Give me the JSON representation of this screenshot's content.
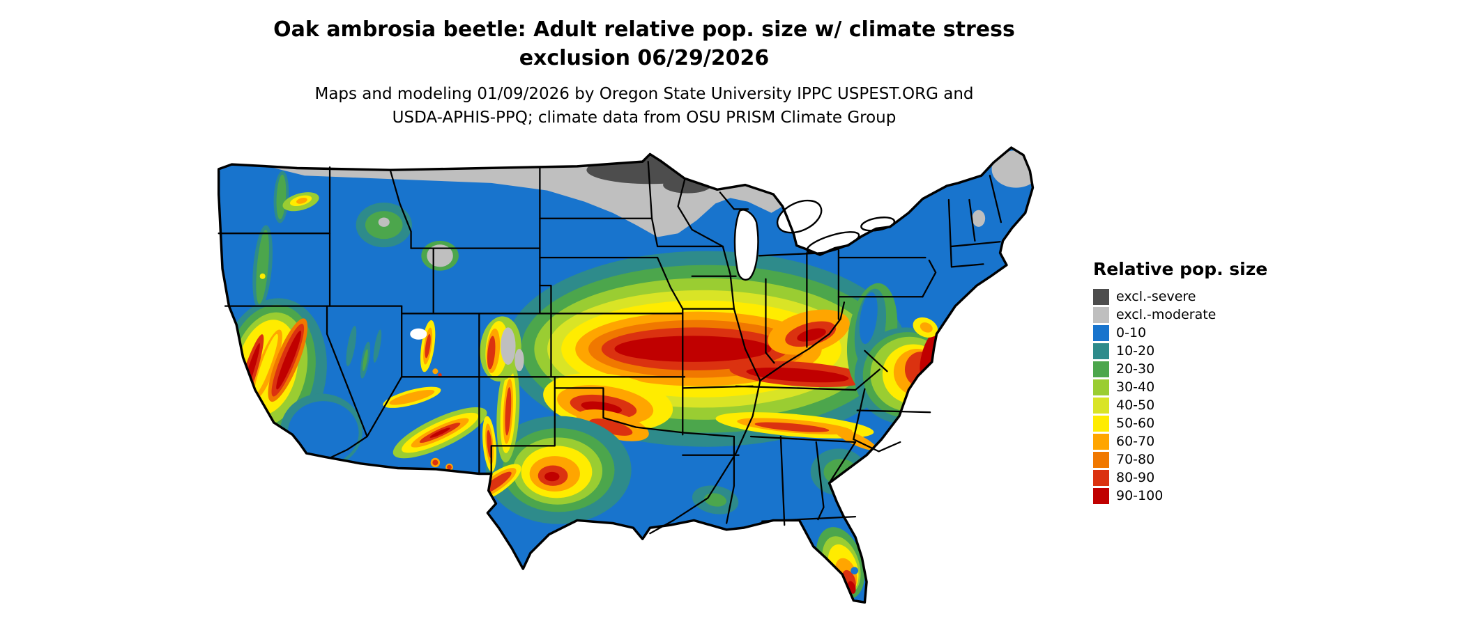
{
  "title": {
    "line1": "Oak ambrosia beetle: Adult relative pop. size w/ climate stress",
    "line2": "exclusion 06/29/2026"
  },
  "subtitle": {
    "line1": "Maps and modeling 01/09/2026 by Oregon State University IPPC USPEST.ORG and",
    "line2": "USDA-APHIS-PPQ; climate data from OSU PRISM Climate Group"
  },
  "legend": {
    "title": "Relative pop. size",
    "items": [
      {
        "label": "excl.-severe",
        "color": "#4d4d4d"
      },
      {
        "label": "excl.-moderate",
        "color": "#bfbfbf"
      },
      {
        "label": "0-10",
        "color": "#1874cd"
      },
      {
        "label": "10-20",
        "color": "#2e8b8b"
      },
      {
        "label": "20-30",
        "color": "#4ca64c"
      },
      {
        "label": "30-40",
        "color": "#9acd32"
      },
      {
        "label": "40-50",
        "color": "#d9e426"
      },
      {
        "label": "50-60",
        "color": "#ffec00"
      },
      {
        "label": "60-70",
        "color": "#ffa500"
      },
      {
        "label": "70-80",
        "color": "#f07800"
      },
      {
        "label": "80-90",
        "color": "#db3210"
      },
      {
        "label": "90-100",
        "color": "#c00000"
      }
    ]
  }
}
